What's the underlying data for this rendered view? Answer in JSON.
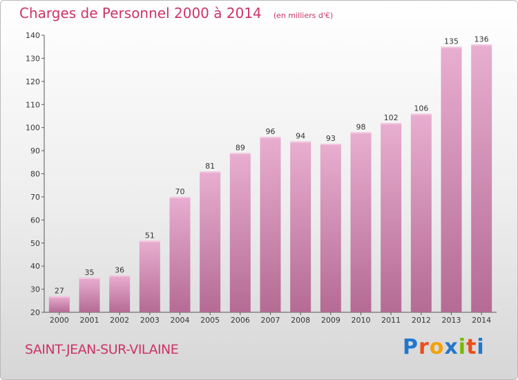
{
  "chart_data": {
    "type": "bar",
    "title": "Charges de Personnel 2000 à 2014",
    "subtitle": "(en milliers d'€)",
    "categories": [
      "2000",
      "2001",
      "2002",
      "2003",
      "2004",
      "2005",
      "2006",
      "2007",
      "2008",
      "2009",
      "2010",
      "2011",
      "2012",
      "2013",
      "2014"
    ],
    "values": [
      27,
      35,
      36,
      51,
      70,
      81,
      89,
      96,
      94,
      93,
      98,
      102,
      106,
      135,
      136
    ],
    "ylim": [
      20,
      140
    ],
    "yticks": [
      20,
      30,
      40,
      50,
      60,
      70,
      80,
      90,
      100,
      110,
      120,
      130,
      140
    ],
    "grid": false,
    "bar_color": "#d98fb8",
    "axis_color": "#555555"
  },
  "footer": {
    "place": "SAINT-JEAN-SUR-VILAINE",
    "brand": "Proxiti",
    "brand_colors": [
      "#2277cc",
      "#e94e1b",
      "#f5a000",
      "#2277cc",
      "#7ab800",
      "#e94e1b",
      "#2277cc"
    ]
  }
}
